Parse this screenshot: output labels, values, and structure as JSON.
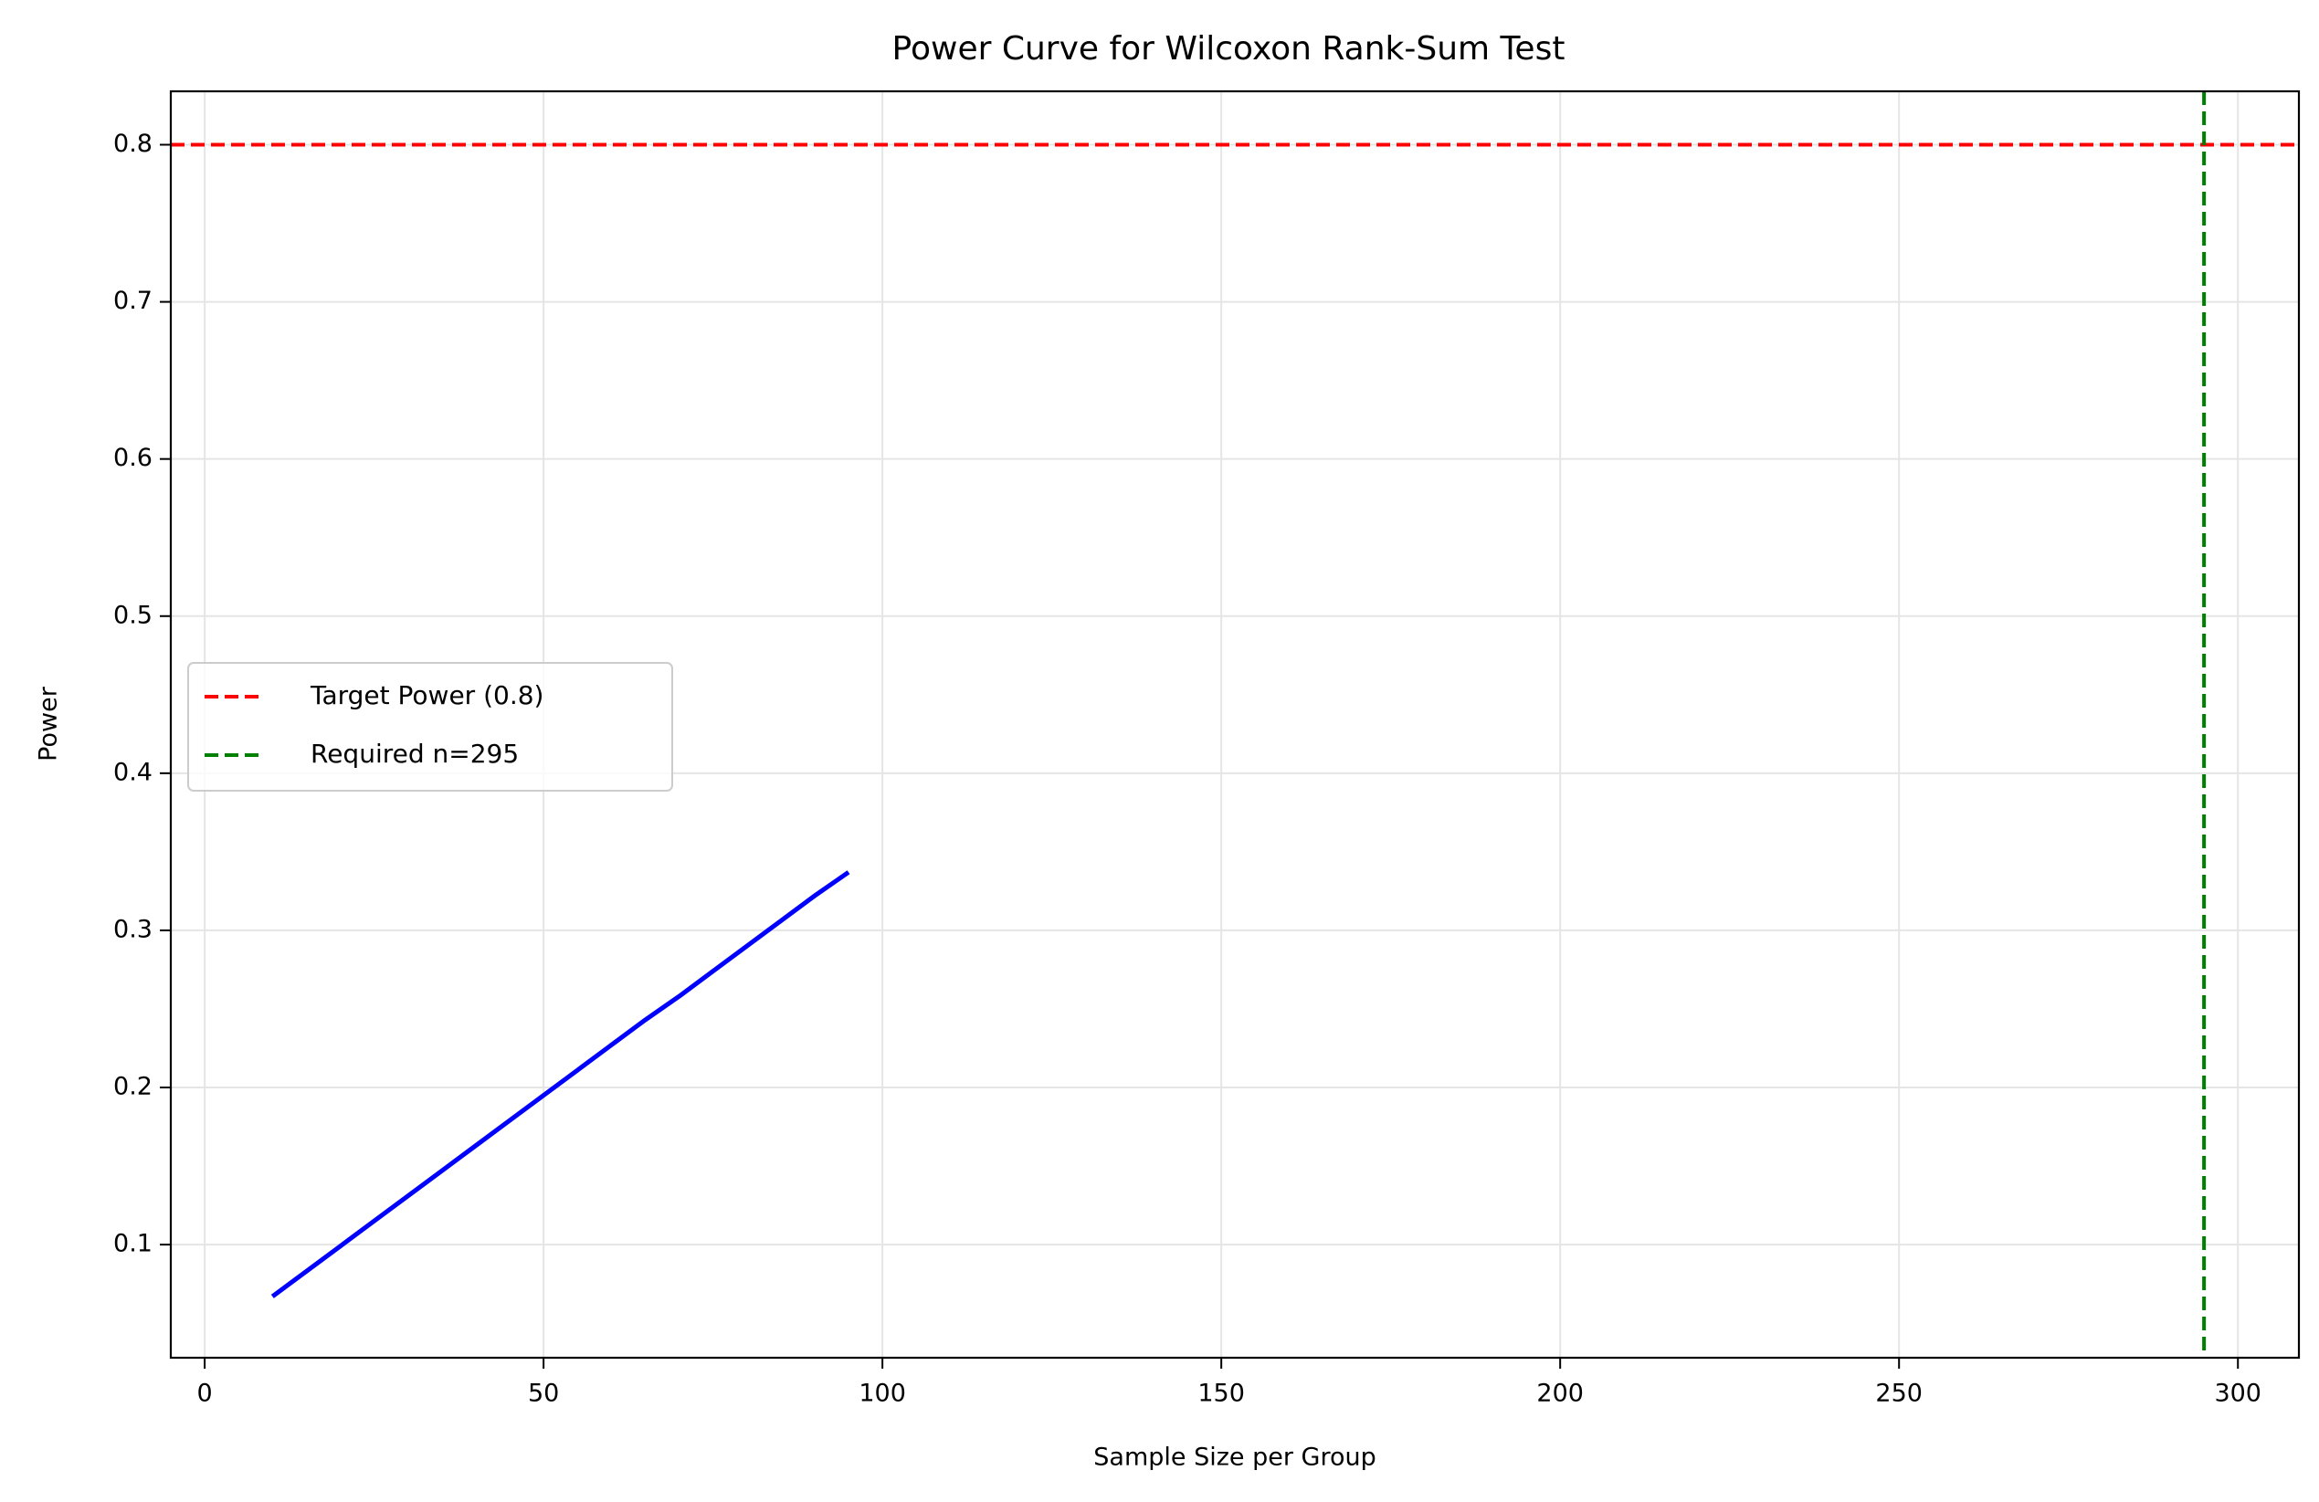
{
  "chart_data": {
    "type": "line",
    "title": "Power Curve for Wilcoxon Rank-Sum Test",
    "xlabel": "Sample Size per Group",
    "ylabel": "Power",
    "xlim": [
      -5,
      309
    ],
    "ylim": [
      0.028,
      0.834
    ],
    "grid": true,
    "xticks": [
      0,
      50,
      100,
      150,
      200,
      250,
      300
    ],
    "yticks": [
      0.1,
      0.2,
      0.3,
      0.4,
      0.5,
      0.6,
      0.7,
      0.8
    ],
    "xtick_labels": [
      "0",
      "50",
      "100",
      "150",
      "200",
      "250",
      "300"
    ],
    "ytick_labels": [
      "0.1",
      "0.2",
      "0.3",
      "0.4",
      "0.5",
      "0.6",
      "0.7",
      "0.8"
    ],
    "series": [
      {
        "color": "#0000ff",
        "style": "solid",
        "x": [
          10,
          15,
          20,
          25,
          30,
          35,
          40,
          45,
          50,
          55,
          60,
          65,
          70,
          75,
          80,
          85,
          90,
          95
        ],
        "y": [
          0.067,
          0.083,
          0.099,
          0.115,
          0.131,
          0.147,
          0.163,
          0.179,
          0.195,
          0.211,
          0.227,
          0.243,
          0.258,
          0.274,
          0.29,
          0.306,
          0.322,
          0.337
        ]
      }
    ],
    "reference_lines": [
      {
        "orientation": "horizontal",
        "value": 0.8,
        "color": "#ff0000",
        "style": "dashed",
        "name": "Target Power (0.8)"
      },
      {
        "orientation": "vertical",
        "value": 295,
        "color": "#008000",
        "style": "dashed",
        "name": "Required n=295"
      }
    ],
    "legend": {
      "placement": "center-left",
      "entries": [
        "Target Power (0.8)",
        "Required n=295"
      ]
    }
  }
}
